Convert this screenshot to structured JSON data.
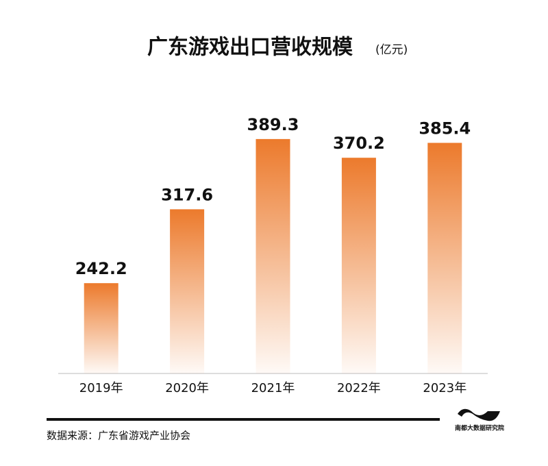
{
  "chart_data": {
    "type": "bar",
    "title": "广东游戏出口营收规模",
    "subtitle": "(亿元)",
    "categories": [
      "2019年",
      "2020年",
      "2021年",
      "2022年",
      "2023年"
    ],
    "values": [
      242.2,
      317.6,
      389.3,
      370.2,
      385.4
    ],
    "color": "#ec7a2c",
    "ylim": [
      150,
      420
    ],
    "source": "数据来源：广东省游戏产业协会",
    "logo": "南都大数据研究院"
  }
}
